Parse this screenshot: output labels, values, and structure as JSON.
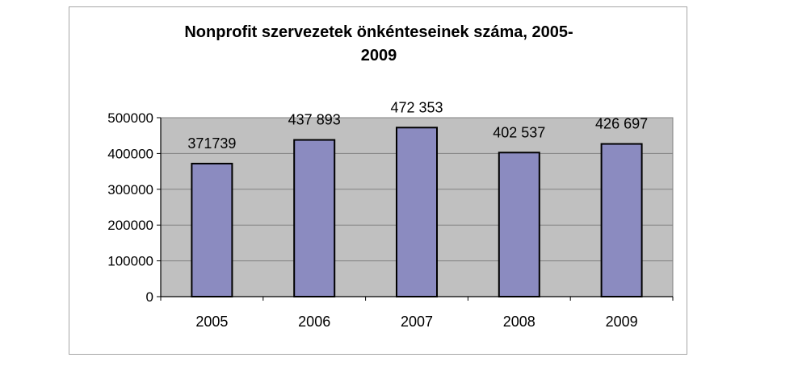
{
  "chart_data": {
    "type": "bar",
    "title_line1": "Nonprofit szervezetek önkénteseinek száma, 2005-",
    "title_line2": "2009",
    "categories": [
      "2005",
      "2006",
      "2007",
      "2008",
      "2009"
    ],
    "values": [
      371739,
      437893,
      472353,
      402537,
      426697
    ],
    "data_labels": [
      "371739",
      "437 893",
      "472 353",
      "402 537",
      "426 697"
    ],
    "yticks": [
      "0",
      "100000",
      "200000",
      "300000",
      "400000",
      "500000"
    ],
    "ylim": [
      0,
      500000
    ],
    "ystep": 100000,
    "grid": true,
    "legend": "none",
    "colors": {
      "plot_bg": "#c0c0c0",
      "bar_fill": "#8b8bc0",
      "bar_stroke": "#000000",
      "grid": "#808080"
    }
  }
}
